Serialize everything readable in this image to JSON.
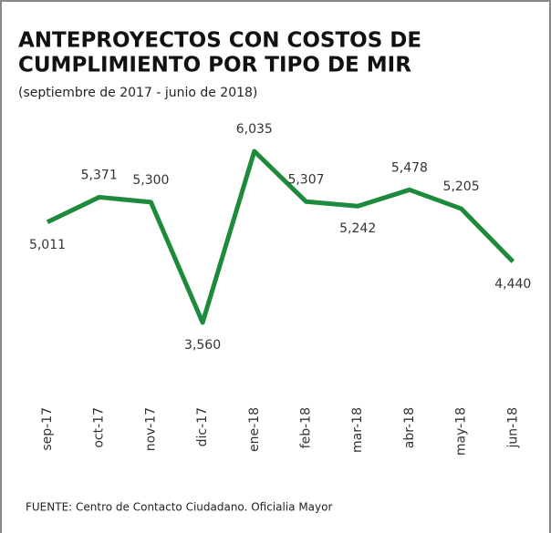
{
  "chart_data": {
    "type": "line",
    "title_lines": [
      "ANTEPROYECTOS CON COSTOS DE",
      "CUMPLIMIENTO POR TIPO DE MIR"
    ],
    "subtitle": "(septiembre de 2017 - junio de 2018)",
    "source": "FUENTE: Centro de Contacto Ciudadano. Oficialia Mayor",
    "categories": [
      "sep-17",
      "oct-17",
      "nov-17",
      "dic-17",
      "ene-18",
      "feb-18",
      "mar-18",
      "abr-18",
      "may-18",
      "jun-18"
    ],
    "series": [
      {
        "color": "#1e8a3c",
        "values": [
          5011,
          5371,
          5300,
          3560,
          6035,
          5307,
          5242,
          5478,
          5205,
          4440
        ],
        "value_labels": [
          "5,011",
          "5,371",
          "5,300",
          "3,560",
          "6,035",
          "5,307",
          "5,242",
          "5,478",
          "5,205",
          "4,440"
        ]
      }
    ]
  }
}
